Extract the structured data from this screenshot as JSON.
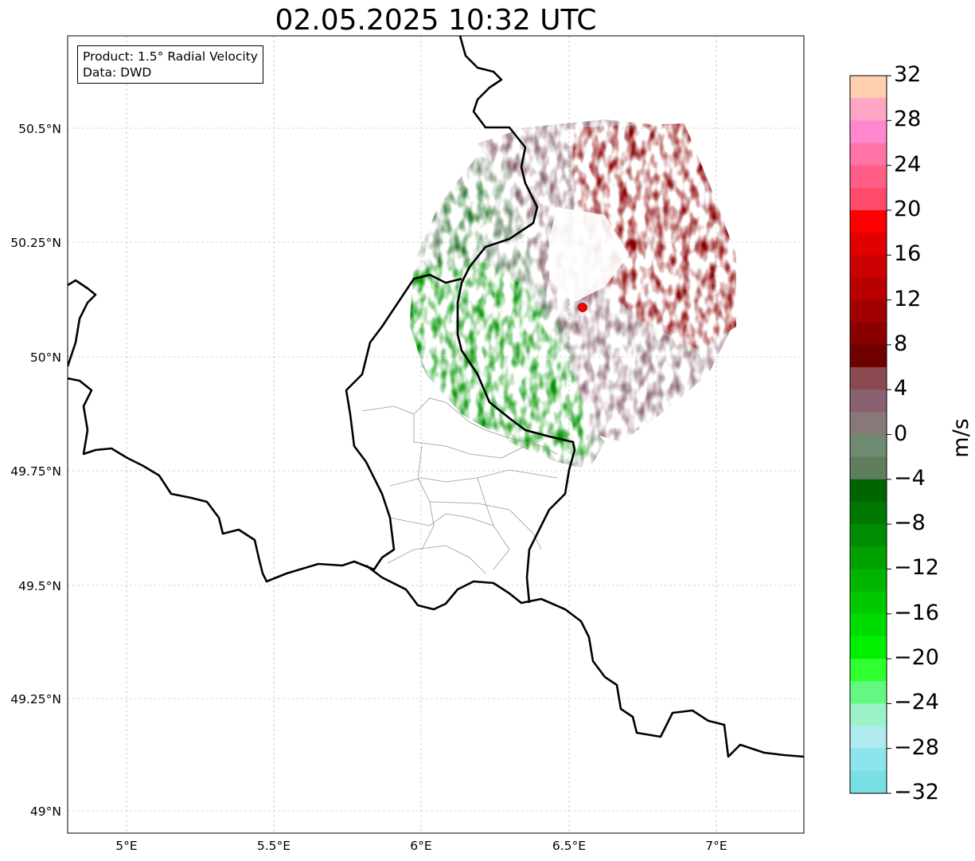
{
  "title": "02.05.2025 10:32 UTC",
  "info_box": {
    "product": "Product: 1.5° Radial Velocity",
    "data": "Data: DWD"
  },
  "lat_labels": [
    "50.5°N",
    "50.25°N",
    "50°N",
    "49.75°N",
    "49.5°N",
    "49.25°N",
    "49°N"
  ],
  "lon_labels": [
    "5°E",
    "5.5°E",
    "6°E",
    "6.5°E",
    "7°E"
  ],
  "colorbar": {
    "unit": "m/s",
    "ticks": [
      "32",
      "28",
      "24",
      "20",
      "16",
      "12",
      "8",
      "4",
      "0",
      "−4",
      "−8",
      "−12",
      "−16",
      "−20",
      "−24",
      "−28",
      "−32"
    ],
    "min": -32,
    "max": 32,
    "colors": [
      "#ffcfb0",
      "#ffa6c4",
      "#ff86cf",
      "#ff73a6",
      "#ff5e86",
      "#ff4a6a",
      "#ff0000",
      "#e00000",
      "#cc0000",
      "#b80000",
      "#a00000",
      "#8a0000",
      "#6e0000",
      "#8a4a50",
      "#886270",
      "#887878",
      "#6e8a70",
      "#5e7e5e",
      "#006400",
      "#007800",
      "#008c00",
      "#00a000",
      "#00b400",
      "#00c800",
      "#00dc00",
      "#00f000",
      "#30ff30",
      "#64f880",
      "#9cf2c8",
      "#aeeaf0",
      "#8ce4ec",
      "#78dfe4"
    ]
  },
  "map": {
    "lon_range": [
      4.8,
      7.3
    ],
    "lat_range": [
      48.95,
      50.7
    ],
    "radar_site": {
      "lon": 6.55,
      "lat": 50.11
    },
    "grid": true
  }
}
